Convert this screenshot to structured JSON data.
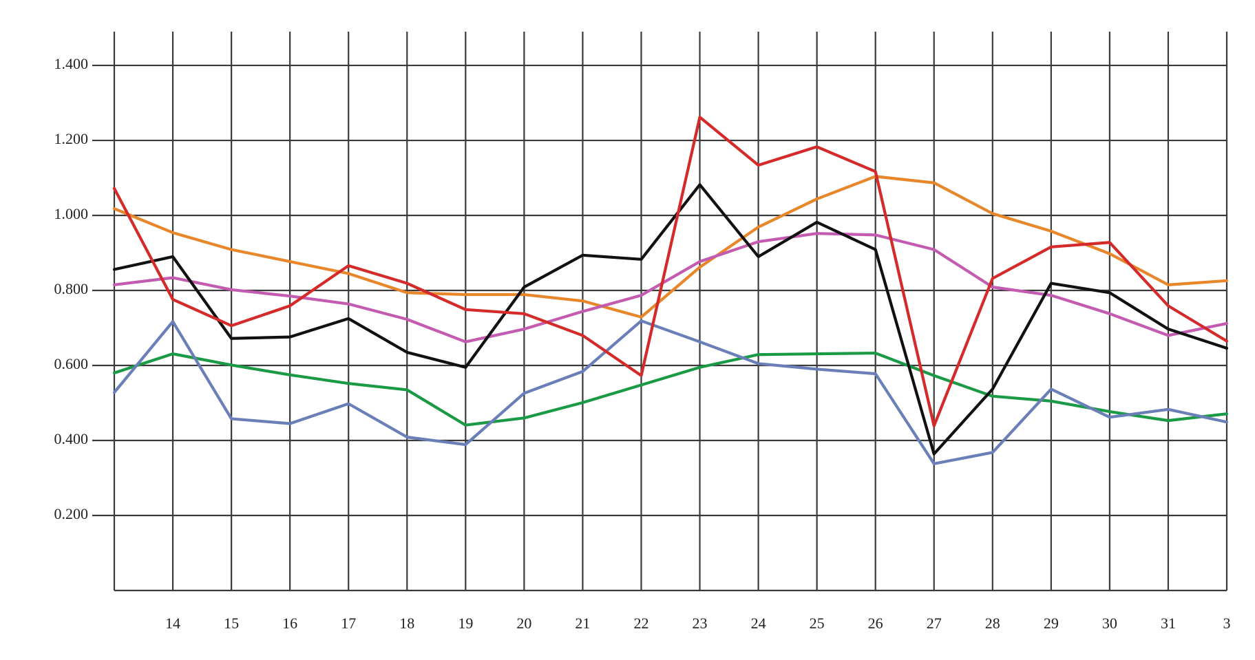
{
  "chart_data": {
    "type": "line",
    "categories": [
      null,
      "14",
      "15",
      "16",
      "17",
      "18",
      "19",
      "20",
      "21",
      "22",
      "23",
      "24",
      "25",
      "26",
      "27",
      "28",
      "29",
      "30",
      "31",
      "3"
    ],
    "ylim": [
      0,
      1.49
    ],
    "yticks": [
      {
        "value": 0.2,
        "label": "0.200"
      },
      {
        "value": 0.4,
        "label": "0.400"
      },
      {
        "value": 0.6,
        "label": "0.600"
      },
      {
        "value": 0.8,
        "label": "0.800"
      },
      {
        "value": 1.0,
        "label": "1.000"
      },
      {
        "value": 1.2,
        "label": "1.200"
      },
      {
        "value": 1.4,
        "label": "1.400"
      }
    ],
    "grid": true,
    "series": [
      {
        "color": "#1a9a45",
        "values": [
          0.58,
          0.631,
          0.601,
          0.575,
          0.552,
          0.535,
          0.441,
          0.46,
          0.501,
          0.548,
          0.595,
          0.629,
          0.631,
          0.633,
          0.573,
          0.518,
          0.505,
          0.477,
          0.453,
          0.471
        ]
      },
      {
        "color": "#6a7fb8",
        "values": [
          0.528,
          0.717,
          0.458,
          0.445,
          0.498,
          0.409,
          0.389,
          0.526,
          0.584,
          0.719,
          0.663,
          0.605,
          0.59,
          0.578,
          0.338,
          0.368,
          0.537,
          0.462,
          0.483,
          0.449
        ]
      },
      {
        "color": "#e8862a",
        "values": [
          1.018,
          0.954,
          0.909,
          0.877,
          0.845,
          0.794,
          0.789,
          0.789,
          0.772,
          0.729,
          0.862,
          0.969,
          1.044,
          1.104,
          1.087,
          1.005,
          0.958,
          0.898,
          0.815,
          0.826
        ]
      },
      {
        "color": "#c35bb0",
        "values": [
          0.815,
          0.834,
          0.802,
          0.785,
          0.764,
          0.723,
          0.663,
          0.697,
          0.744,
          0.787,
          0.877,
          0.93,
          0.952,
          0.948,
          0.909,
          0.809,
          0.787,
          0.738,
          0.68,
          0.712
        ]
      },
      {
        "color": "#111111",
        "values": [
          0.856,
          0.89,
          0.672,
          0.676,
          0.725,
          0.635,
          0.595,
          0.809,
          0.894,
          0.883,
          1.082,
          0.89,
          0.982,
          0.909,
          0.364,
          0.537,
          0.819,
          0.794,
          0.697,
          0.646
        ]
      },
      {
        "color": "#d42a2a",
        "values": [
          1.072,
          0.776,
          0.706,
          0.759,
          0.866,
          0.819,
          0.749,
          0.738,
          0.68,
          0.573,
          1.262,
          1.134,
          1.183,
          1.117,
          0.439,
          0.832,
          0.916,
          0.928,
          0.759,
          0.665
        ]
      }
    ]
  }
}
